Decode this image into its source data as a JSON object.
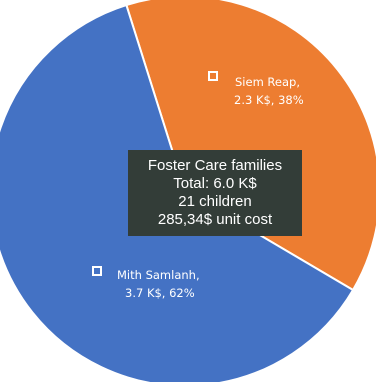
{
  "chart_data": {
    "type": "pie",
    "slices": [
      {
        "name": "Siem Reap",
        "label_line1": "Siem Reap,",
        "label_line2": "2.3 K$, 38%",
        "value": 2.3,
        "percent": 38,
        "color": "#ed7d31"
      },
      {
        "name": "Mith Samlanh",
        "label_line1": "Mith Samlanh,",
        "label_line2": "3.7 K$, 62%",
        "value": 3.7,
        "percent": 62,
        "color": "#4472c4"
      }
    ],
    "center_label": {
      "line1": "Foster Care families",
      "line2": "Total: 6.0 K$",
      "line3": "21 children",
      "line4": "285,34$ unit cost"
    }
  }
}
